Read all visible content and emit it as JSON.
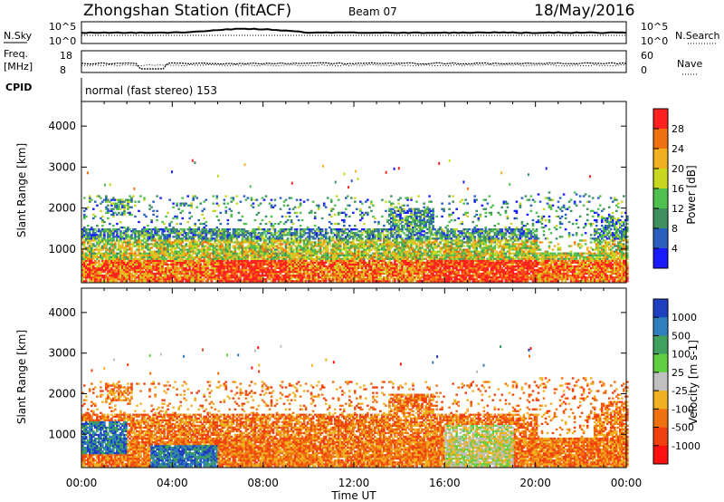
{
  "header": {
    "station": "Zhongshan Station (fitACF)",
    "beam": "Beam 07",
    "date": "18/May/2016"
  },
  "top_panels": {
    "nsky_label": "N.Sky",
    "nsky_ticks": [
      "10^5",
      "10^0"
    ],
    "nsearch_label": "N.Search",
    "freq_label_1": "Freq.",
    "freq_label_2": "[MHz]",
    "freq_ticks": [
      "18",
      "8"
    ],
    "nave_label": "Nave",
    "nave_ticks": [
      "60",
      "0"
    ],
    "cpid_label": "CPID",
    "cpid_text": "normal (fast stereo) 153"
  },
  "chart_data": [
    {
      "type": "heatmap",
      "name": "Power",
      "ylabel": "Slant Range [km]",
      "xlabel": "Time UT",
      "x_ticks": [
        "00:00",
        "04:00",
        "08:00",
        "12:00",
        "16:00",
        "20:00",
        "00:00"
      ],
      "y_ticks": [
        1000,
        2000,
        3000,
        4000
      ],
      "ylim": [
        180,
        4600
      ],
      "colorbar_label": "Power [dB]",
      "colorbar_ticks": [
        4,
        8,
        12,
        16,
        20,
        24,
        28
      ],
      "colorbar_colors": [
        "#1a1aff",
        "#2a5fbf",
        "#3f8f5f",
        "#4fbf4f",
        "#c8d820",
        "#f0b020",
        "#f07010",
        "#ff2020"
      ]
    },
    {
      "type": "heatmap",
      "name": "Velocity",
      "ylabel": "Slant Range [km]",
      "xlabel": "Time UT",
      "x_ticks": [
        "00:00",
        "04:00",
        "08:00",
        "12:00",
        "16:00",
        "20:00",
        "00:00"
      ],
      "y_ticks": [
        1000,
        2000,
        3000,
        4000
      ],
      "ylim": [
        180,
        4600
      ],
      "colorbar_label": "Velocity [m s-1]",
      "colorbar_ticks": [
        "1000",
        "500",
        "100",
        "25",
        "-25",
        "-100",
        "-500",
        "-1000"
      ],
      "colorbar_colors": [
        "#1e3fbf",
        "#2f7fbf",
        "#3fa060",
        "#60d040",
        "#c0c0c0",
        "#f0b020",
        "#f07010",
        "#f04010",
        "#ff1010"
      ]
    }
  ],
  "x_axis_title": "Time UT"
}
